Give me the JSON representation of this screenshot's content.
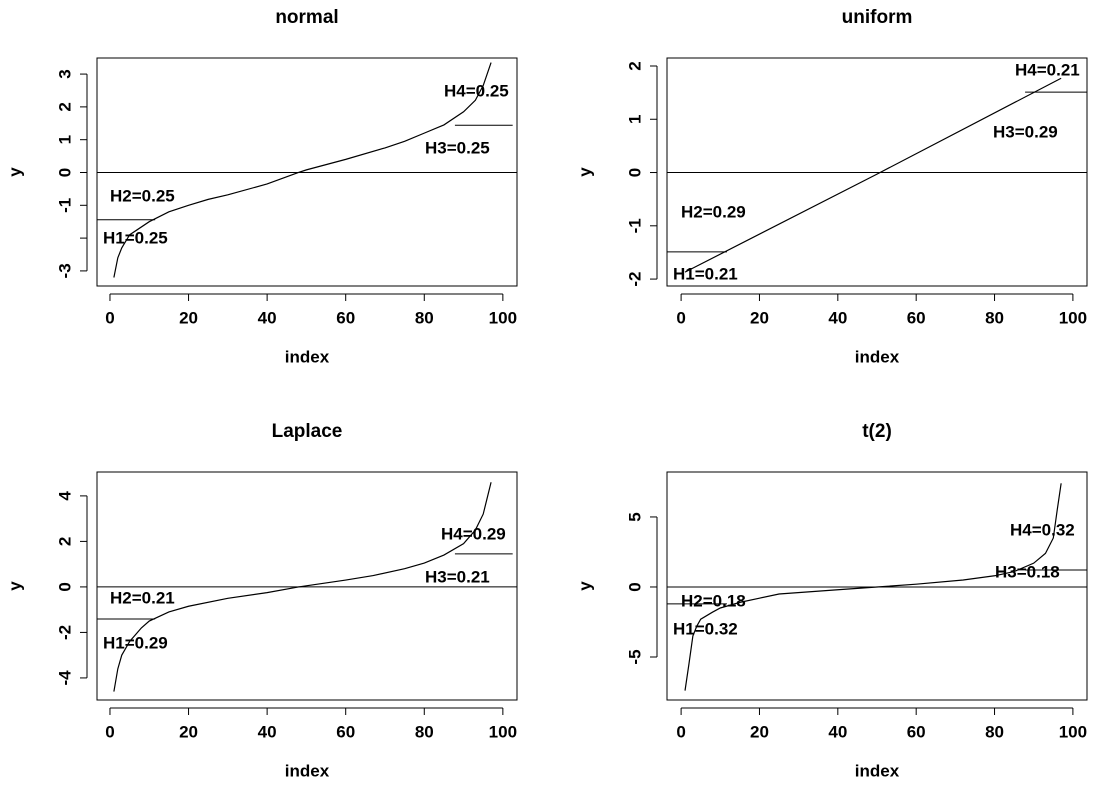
{
  "chart_data": [
    {
      "type": "line",
      "title": "normal",
      "x_label": "index",
      "y_label": "y",
      "x": [
        1,
        2,
        3,
        5,
        10,
        15,
        20,
        25,
        30,
        40,
        48,
        50,
        60,
        70,
        75,
        80,
        85,
        90,
        93,
        95,
        96,
        97
      ],
      "values": [
        -3.2,
        -2.6,
        -2.3,
        -1.9,
        -1.5,
        -1.2,
        -1.0,
        -0.82,
        -0.68,
        -0.35,
        0,
        0.08,
        0.4,
        0.75,
        0.95,
        1.2,
        1.45,
        1.85,
        2.2,
        2.65,
        3.0,
        3.35
      ],
      "color": "#000000",
      "xlim": [
        -3.3,
        103.6
      ],
      "ylim": [
        -3.46,
        3.49
      ],
      "xticks": [
        0,
        20,
        40,
        60,
        80,
        100
      ],
      "yticks": [
        -3,
        {
          "value": -2,
          "label": null
        },
        -1,
        0,
        1,
        2,
        3
      ],
      "hline": 0,
      "segments": [
        {
          "x": [
            -3.3,
            11.5
          ],
          "y": -1.44
        },
        {
          "x": [
            87.8,
            102.5
          ],
          "y": 1.44
        }
      ],
      "annotations": [
        "H1=0.25",
        "H2=0.25",
        "H3=0.25",
        "H4=0.25"
      ]
    },
    {
      "type": "line",
      "title": "uniform",
      "x_label": "index",
      "y_label": "y",
      "x": [
        1,
        50,
        97
      ],
      "values": [
        -1.87,
        -0.03,
        1.77
      ],
      "color": "#000000",
      "xlim": [
        -3.6,
        103.6
      ],
      "ylim": [
        -2.13,
        2.15
      ],
      "xticks": [
        0,
        20,
        40,
        60,
        80,
        100
      ],
      "yticks": [
        -2,
        -1,
        0,
        1,
        2
      ],
      "hline": 0,
      "segments": [
        {
          "x": [
            -3.6,
            11.7
          ],
          "y": -1.49
        },
        {
          "x": [
            87.8,
            103.6
          ],
          "y": 1.51
        }
      ],
      "annotations": [
        "H1=0.21",
        "H2=0.29",
        "H3=0.29",
        "H4=0.21"
      ]
    },
    {
      "type": "line",
      "title": "Laplace",
      "x_label": "index",
      "y_label": "y",
      "x": [
        1,
        2,
        3,
        5,
        8,
        10,
        15,
        20,
        30,
        40,
        48,
        60,
        67,
        75,
        80,
        85,
        90,
        93,
        95,
        96,
        97
      ],
      "values": [
        -4.6,
        -3.6,
        -3.0,
        -2.4,
        -1.8,
        -1.5,
        -1.1,
        -0.85,
        -0.5,
        -0.25,
        0,
        0.3,
        0.5,
        0.8,
        1.05,
        1.4,
        1.9,
        2.5,
        3.2,
        3.9,
        4.6
      ],
      "color": "#000000",
      "xlim": [
        -3.3,
        103.6
      ],
      "ylim": [
        -4.97,
        5.05
      ],
      "xticks": [
        0,
        20,
        40,
        60,
        80,
        100
      ],
      "yticks": [
        -4,
        -2,
        0,
        2,
        4
      ],
      "hline": 0,
      "segments": [
        {
          "x": [
            -3.3,
            11.5
          ],
          "y": -1.41
        },
        {
          "x": [
            87.8,
            102.5
          ],
          "y": 1.45
        }
      ],
      "annotations": [
        "H1=0.29",
        "H2=0.21",
        "H3=0.21",
        "H4=0.29"
      ]
    },
    {
      "type": "line",
      "title": "t(2)",
      "x_label": "index",
      "y_label": "y",
      "x": [
        1,
        2,
        3,
        4,
        5,
        8,
        10,
        15,
        20,
        25,
        40,
        50,
        60,
        72,
        80,
        85,
        90,
        93,
        95,
        96,
        97
      ],
      "values": [
        -7.4,
        -5.5,
        -3.5,
        -2.8,
        -2.3,
        -1.8,
        -1.5,
        -1.1,
        -0.8,
        -0.5,
        -0.2,
        0,
        0.2,
        0.5,
        0.8,
        1.1,
        1.7,
        2.4,
        3.5,
        5.5,
        7.4
      ],
      "color": "#000000",
      "xlim": [
        -3.6,
        103.6
      ],
      "ylim": [
        -8.07,
        8.21
      ],
      "xticks": [
        0,
        20,
        40,
        60,
        80,
        100
      ],
      "yticks": [
        -5,
        0,
        5
      ],
      "hline": 0,
      "segments": [
        {
          "x": [
            -3.6,
            11.7
          ],
          "y": -1.21
        },
        {
          "x": [
            87.8,
            103.6
          ],
          "y": 1.21
        }
      ],
      "annotations": [
        "H1=0.32",
        "H2=0.18",
        "H3=0.18",
        "H4=0.32"
      ]
    }
  ]
}
